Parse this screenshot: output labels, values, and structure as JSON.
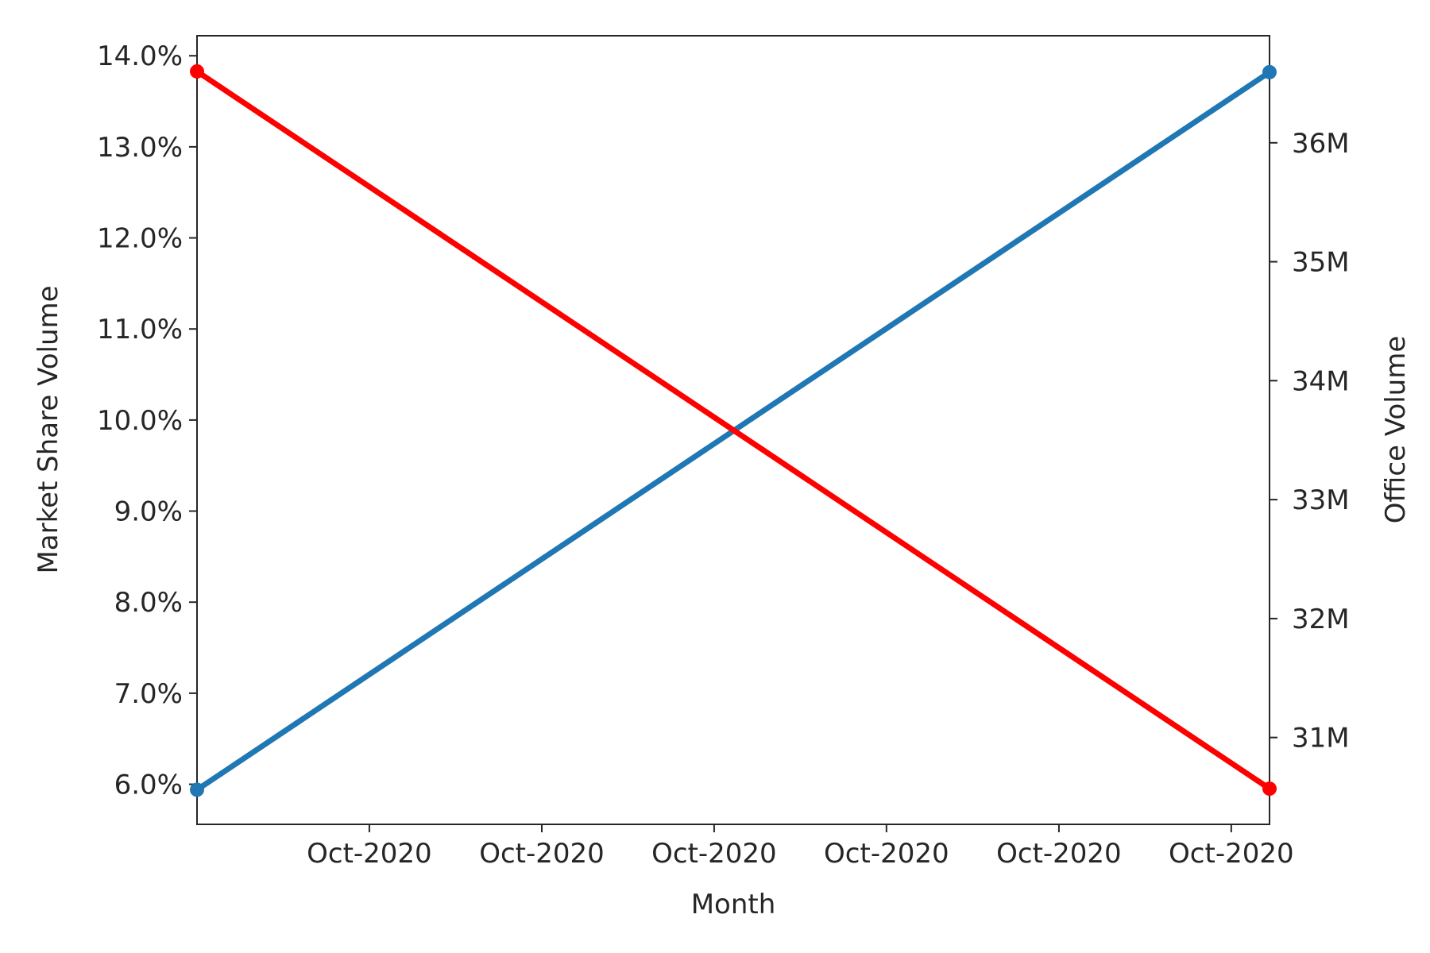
{
  "chart_data": {
    "type": "line",
    "xlabel": "Month",
    "ylabel_left": "Market Share Volume",
    "ylabel_right": "Office Volume",
    "x_tick_labels": [
      "Oct-2020",
      "Oct-2020",
      "Oct-2020",
      "Oct-2020",
      "Oct-2020",
      "Oct-2020"
    ],
    "x_tick_positions": [
      0.1333,
      0.2667,
      0.4,
      0.5333,
      0.6667,
      0.8
    ],
    "xlim": [
      0,
      0.8296
    ],
    "y_left": {
      "ticks": [
        6,
        7,
        8,
        9,
        10,
        11,
        12,
        13,
        14
      ],
      "tick_labels": [
        "6.0%",
        "7.0%",
        "8.0%",
        "9.0%",
        "10.0%",
        "11.0%",
        "12.0%",
        "13.0%",
        "14.0%"
      ],
      "ylim": [
        5.56,
        14.22
      ]
    },
    "y_right": {
      "ticks": [
        31,
        32,
        33,
        34,
        35,
        36
      ],
      "tick_labels": [
        "31M",
        "32M",
        "33M",
        "34M",
        "35M",
        "36M"
      ],
      "ylim": [
        30.27,
        36.9
      ]
    },
    "grid": false,
    "series": [
      {
        "axis": "left",
        "color": "#1f77b4",
        "x": [
          0,
          0.8296
        ],
        "values": [
          5.94,
          13.82
        ]
      },
      {
        "axis": "right",
        "color": "#ff0000",
        "x": [
          0,
          0.8296
        ],
        "values": [
          36.6,
          30.57
        ]
      }
    ]
  }
}
